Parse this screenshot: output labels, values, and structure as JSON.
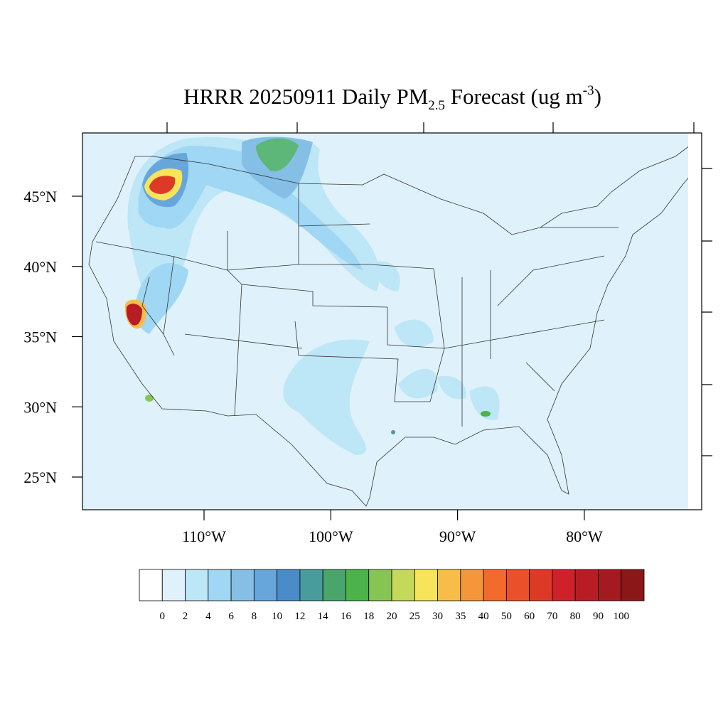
{
  "header": {
    "title": [
      "HRRR 20250911 Daily PM",
      "2.5",
      " Forecast (ug m",
      "-3",
      ")"
    ]
  },
  "map": {
    "lat_ticks": [
      {
        "value": 45,
        "label": "45°N"
      },
      {
        "value": 40,
        "label": "40°N"
      },
      {
        "value": 35,
        "label": "35°N"
      },
      {
        "value": 30,
        "label": "30°N"
      },
      {
        "value": 25,
        "label": "25°N"
      }
    ],
    "lon_ticks": [
      {
        "value": -110,
        "label": "110°W"
      },
      {
        "value": -100,
        "label": "100°W"
      },
      {
        "value": -90,
        "label": "90°W"
      },
      {
        "value": -80,
        "label": "80°W"
      }
    ]
  },
  "colorbar": {
    "levels": [
      0,
      2,
      4,
      6,
      8,
      10,
      12,
      14,
      16,
      18,
      20,
      25,
      30,
      35,
      40,
      50,
      60,
      70,
      80,
      90,
      100
    ],
    "colors": [
      "#ffffff",
      "#dff2fb",
      "#bde6f7",
      "#9fd7f4",
      "#85bfe6",
      "#67a6da",
      "#4a8cc8",
      "#489c9c",
      "#49a56a",
      "#4bb34a",
      "#86c553",
      "#c4d85a",
      "#f8e45a",
      "#f8bd49",
      "#f5963b",
      "#f26b2d",
      "#ea5029",
      "#dc3a27",
      "#cf2129",
      "#b81c25",
      "#a31b20",
      "#8b1719"
    ]
  }
}
